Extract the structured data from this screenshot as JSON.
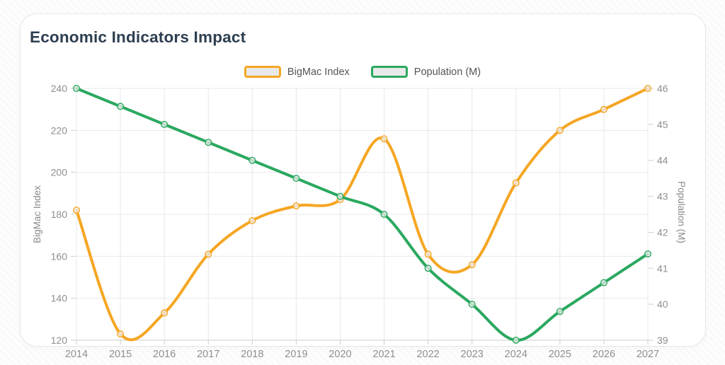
{
  "card": {
    "title": "Economic Indicators Impact"
  },
  "chart_data": {
    "type": "line",
    "title": "Economic Indicators Impact",
    "x": [
      "2014",
      "2015",
      "2016",
      "2017",
      "2018",
      "2019",
      "2020",
      "2021",
      "2022",
      "2023",
      "2024",
      "2025",
      "2026",
      "2027"
    ],
    "series": [
      {
        "name": "BigMac Index",
        "color": "#F5A623",
        "axis": "left",
        "values": [
          182,
          123,
          133,
          161,
          177,
          184,
          187,
          216,
          161,
          156,
          195,
          220,
          230,
          240
        ]
      },
      {
        "name": "Population (M)",
        "color": "#2AA85F",
        "axis": "right",
        "values": [
          46.0,
          45.5,
          45.0,
          44.5,
          44.0,
          43.5,
          43.0,
          42.5,
          41.0,
          40.0,
          39.0,
          39.8,
          40.6,
          41.4
        ]
      }
    ],
    "left_axis": {
      "label": "BigMac Index",
      "min": 120,
      "max": 240,
      "ticks": [
        240,
        220,
        200,
        180,
        160,
        140,
        120
      ]
    },
    "right_axis": {
      "label": "Population (M)",
      "min": 39,
      "max": 46,
      "ticks": [
        46,
        45,
        44,
        43,
        42,
        41,
        40,
        39
      ]
    },
    "legend_position": "top",
    "grid": true,
    "smooth": true
  },
  "style": {
    "accent_orange": "#F5A623",
    "accent_green": "#2AA85F",
    "title_color": "#2D3E50",
    "tick_label_color": "#8F8F8F",
    "axis_name_color": "#8A8A8A",
    "grid_color": "#E8E8E8",
    "axis_line_color": "#CCCCCC",
    "legend_text_color": "#555555",
    "legend_swatch_fill": "#E9E9E9"
  }
}
